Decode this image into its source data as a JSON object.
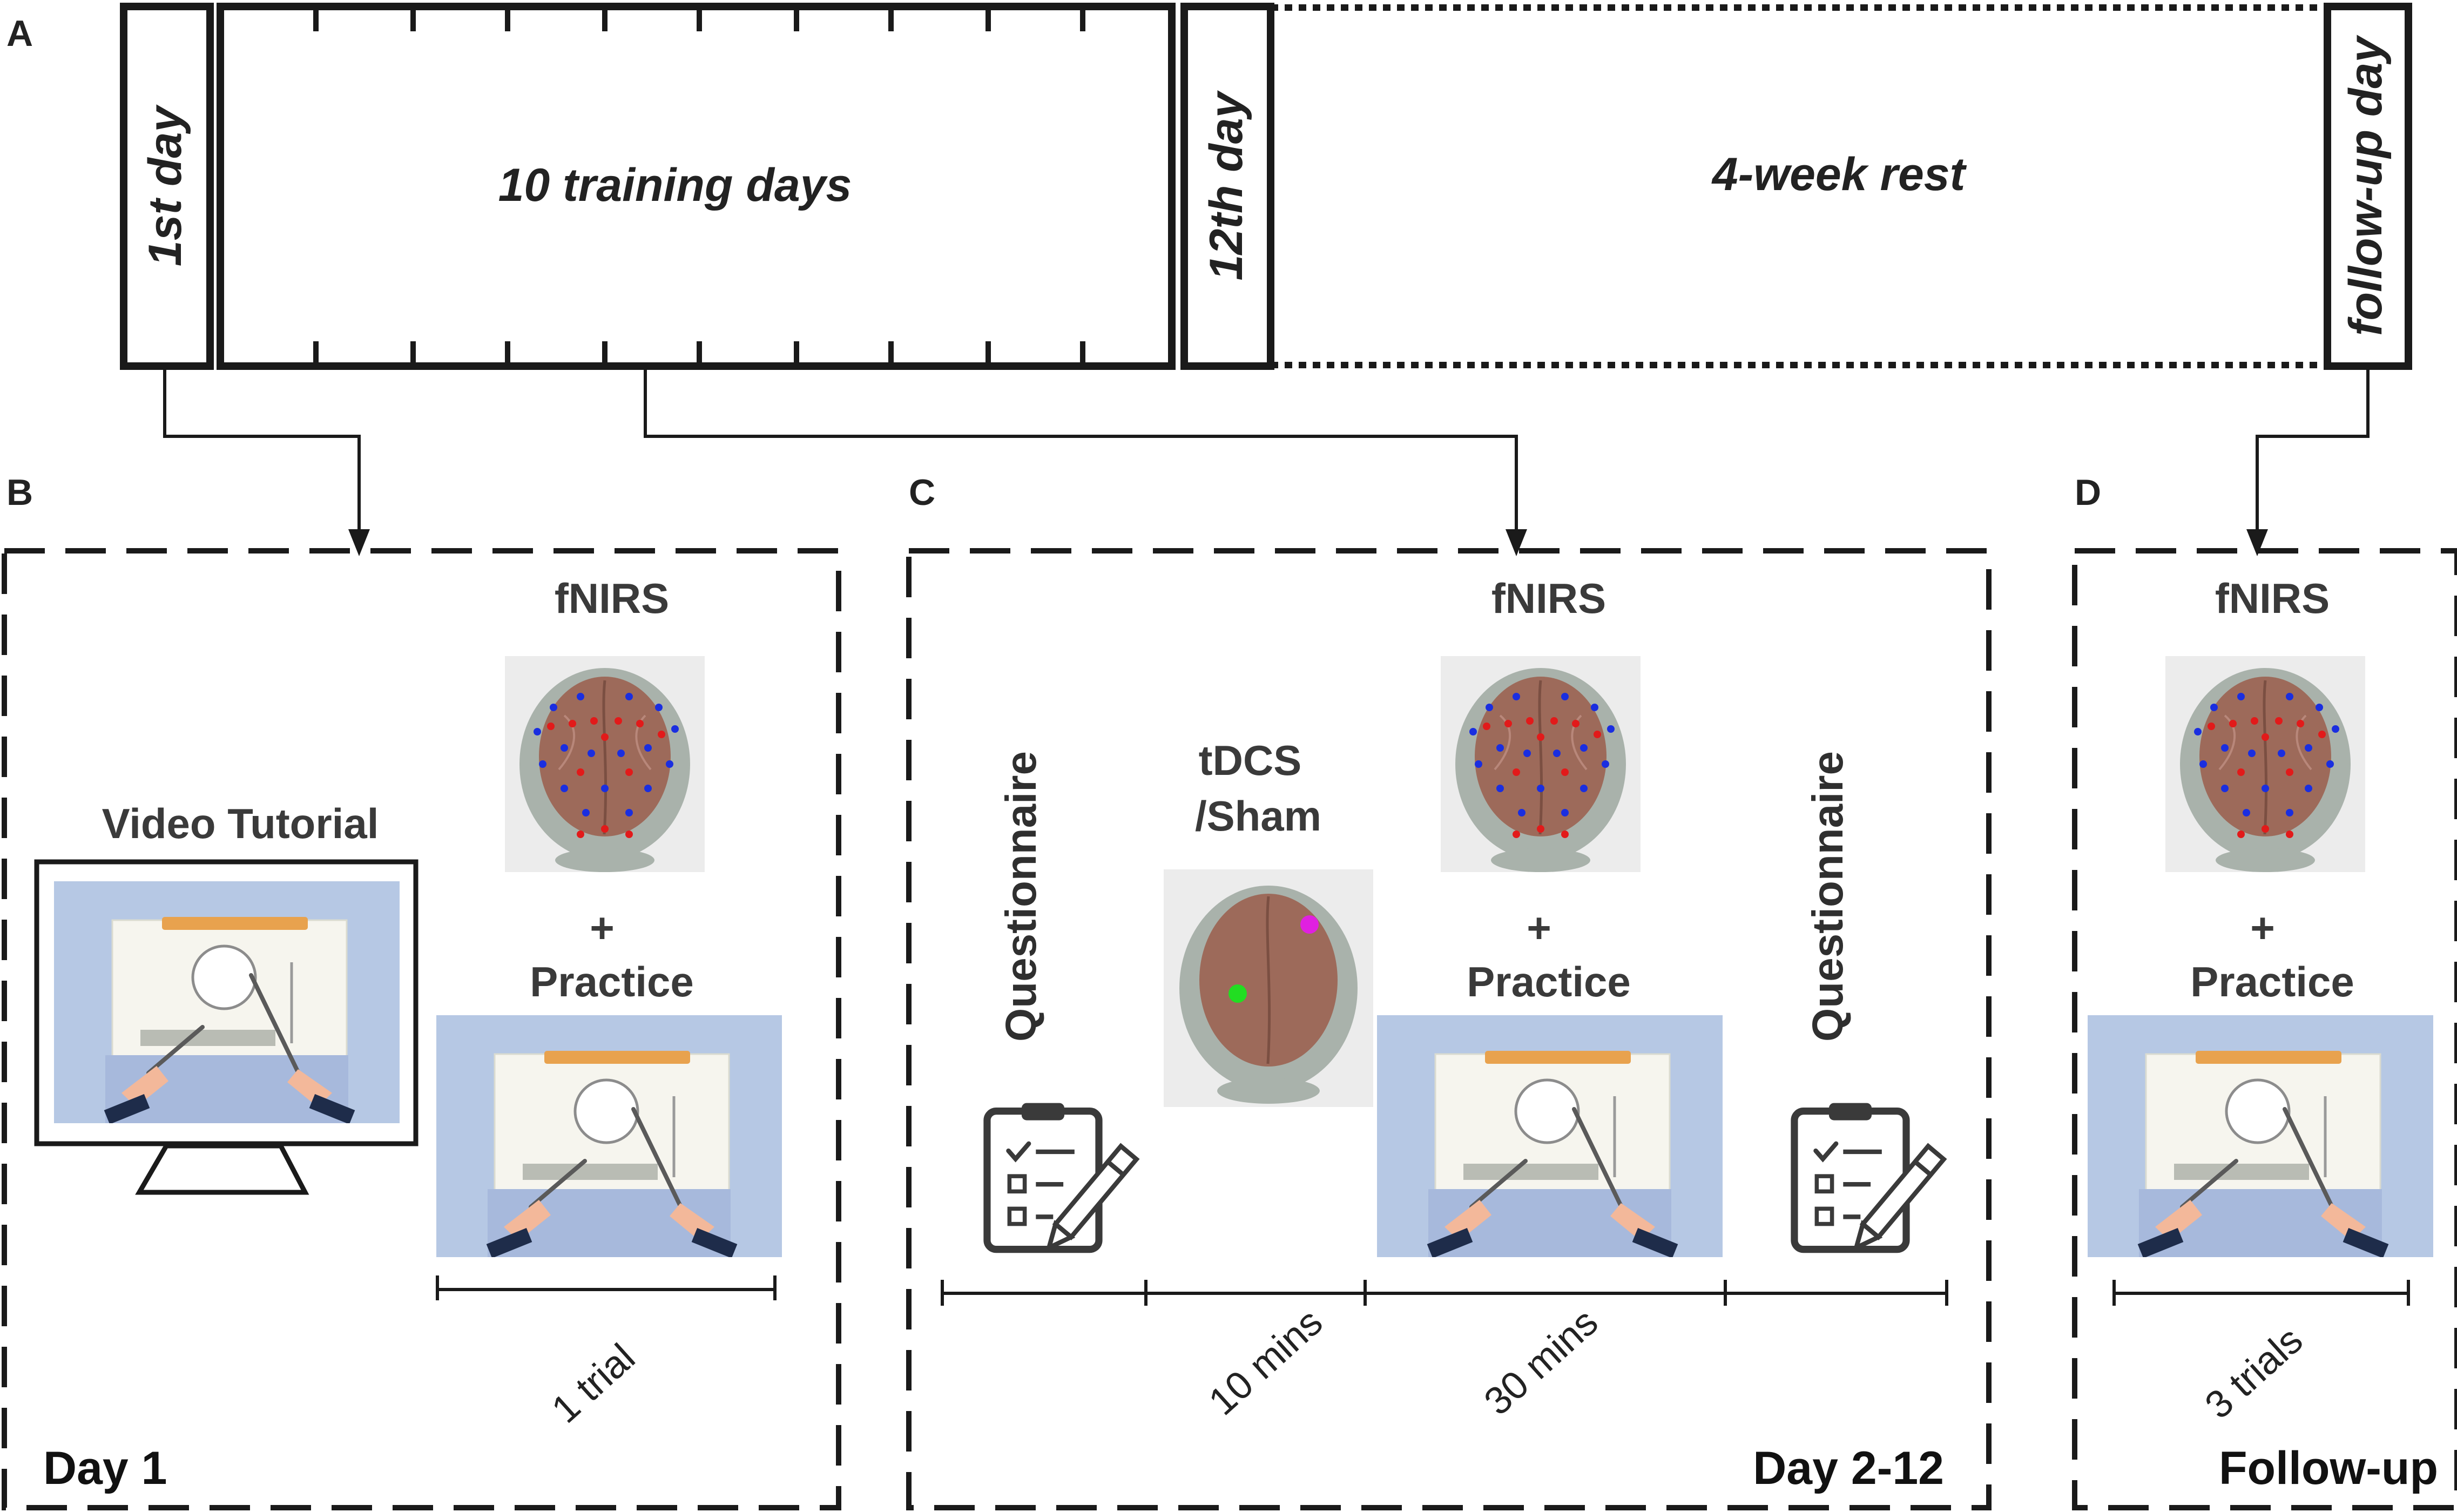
{
  "panels": {
    "a": "A",
    "b": "B",
    "c": "C",
    "d": "D"
  },
  "timeline": {
    "first_day": "1st day",
    "training": "10 training days",
    "twelfth_day": "12th day",
    "rest": "4-week rest",
    "follow_up": "follow-up day"
  },
  "day1": {
    "video_title": "Video Tutorial",
    "fnirs": "fNIRS",
    "plus": "+",
    "practice": "Practice",
    "duration": "1  trial",
    "day_label": "Day 1"
  },
  "day2_12": {
    "questionnaire_pre": "Questionnaire",
    "tdcs_line1": "tDCS",
    "tdcs_line2": "/Sham",
    "fnirs": "fNIRS",
    "plus": "+",
    "practice": "Practice",
    "questionnaire_post": "Questionnaire",
    "duration_1": "10 mins",
    "duration_2": "30 mins",
    "day_label": "Day 2-12"
  },
  "followup": {
    "fnirs": "fNIRS",
    "plus": "+",
    "practice": "Practice",
    "duration": "3 trials",
    "day_label": "Follow-up"
  },
  "colors": {
    "line": "#1a1a1a",
    "panel_bg": "#b6c8e4",
    "board": "#f6f5ee",
    "board_edge": "#dadbd0",
    "clip": "#e8a24e",
    "skin": "#f3b89a",
    "sleeve": "#1e2c4a",
    "brain": "#9d6a5a",
    "skull": "#a9b2ab",
    "optode_red": "#e21a1a",
    "optode_blue": "#1a2ee0",
    "electrode_magenta": "#e020e0",
    "electrode_green": "#22dd22"
  }
}
